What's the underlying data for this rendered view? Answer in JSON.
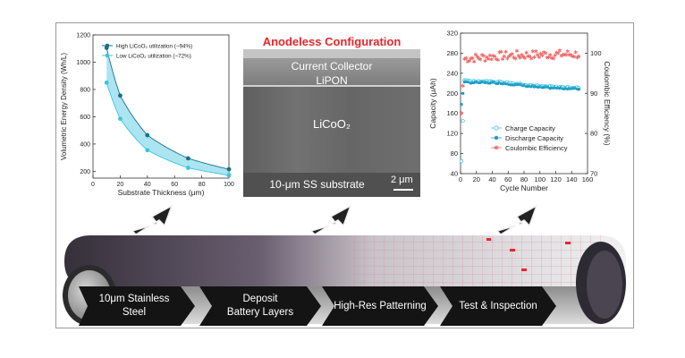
{
  "left_chart": {
    "chart_data": {
      "type": "line",
      "xlabel": "Substrate Thickness (μm)",
      "ylabel": "Volumetric Energy Density (Wh/L)",
      "xlim": [
        0,
        100
      ],
      "ylim": [
        150,
        1200
      ],
      "x_ticks": [
        "0",
        "20",
        "40",
        "60",
        "80",
        "100"
      ],
      "y_ticks": [
        "200",
        "400",
        "600",
        "800",
        "1000",
        "1200"
      ],
      "series": [
        {
          "name": "High LiCoO₂ utilization (~94%)",
          "color": "#1a6f8a",
          "x": [
            10,
            20,
            40,
            70,
            100
          ],
          "y": [
            1105,
            755,
            465,
            295,
            215
          ]
        },
        {
          "name": "Low LiCoO₂ utilization (~72%)",
          "color": "#3cc4dc",
          "x": [
            10,
            20,
            40,
            70,
            100
          ],
          "y": [
            850,
            585,
            355,
            225,
            170
          ]
        }
      ],
      "fill_between": {
        "color": "#8fdcec"
      },
      "legend_position": "top-right"
    }
  },
  "middle_image": {
    "title": "Anodeless Configuration",
    "layers": [
      "Current Collector",
      "LiPON",
      "LiCoO₂",
      "10-μm SS substrate"
    ],
    "scale_bar": "2 μm"
  },
  "right_chart": {
    "chart_data": {
      "type": "scatter",
      "xlabel": "Cycle Number",
      "ylabel_left": "Capacity (μAh)",
      "ylabel_right": "Coulombic Efficiency (%)",
      "xlim": [
        0,
        160
      ],
      "ylim_left": [
        40,
        320
      ],
      "ylim_right": [
        70,
        105
      ],
      "x_ticks": [
        "0",
        "20",
        "40",
        "60",
        "80",
        "100",
        "120",
        "140",
        "160"
      ],
      "y_ticks_left": [
        "40",
        "80",
        "120",
        "160",
        "200",
        "240",
        "280",
        "320"
      ],
      "y_ticks_right": [
        "70",
        "80",
        "90",
        "100"
      ],
      "series": [
        {
          "name": "Charge Capacity",
          "marker": "open-circle",
          "color": "#3cc4dc",
          "cycles": "1-150",
          "values_summary": [
            65,
            225,
            223,
            214,
            211
          ]
        },
        {
          "name": "Discharge Capacity",
          "marker": "filled-circle",
          "color": "#1e9bc6",
          "cycles": "1-150",
          "values_summary": [
            178,
            222,
            221,
            212,
            209
          ]
        },
        {
          "name": "Coulombic Efficiency",
          "marker": "star",
          "color": "#f06a6a",
          "cycles": "1-150",
          "values_summary": [
            85,
            98.6,
            99.3,
            99.6,
            99.7
          ]
        }
      ],
      "legend_position": "bottom-right"
    }
  },
  "process_steps": [
    {
      "label": "10μm Stainless\nSteel"
    },
    {
      "label": "Deposit\nBattery Layers"
    },
    {
      "label": "High-Res Patterning"
    },
    {
      "label": "Test & Inspection"
    }
  ],
  "colors": {
    "accent_red": "#e8252a",
    "arrow_dark": "#141414",
    "belt_dark": "#3a3440",
    "belt_light": "#eeeeee"
  }
}
